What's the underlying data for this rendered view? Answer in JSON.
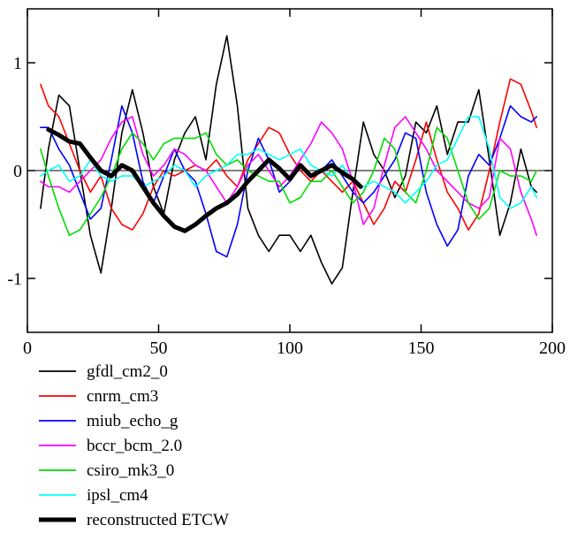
{
  "chart_data": {
    "type": "line",
    "title": "",
    "xlabel": "",
    "ylabel": "",
    "xlim": [
      0,
      200
    ],
    "ylim": [
      -1.5,
      1.5
    ],
    "x_ticks": [
      0,
      50,
      100,
      150,
      200
    ],
    "y_ticks": [
      1,
      0,
      -1
    ],
    "x_tick_labels": [
      "0",
      "50",
      "100",
      "150",
      "200"
    ],
    "y_tick_labels": [
      "1",
      "0",
      "-1"
    ],
    "grid": false,
    "legend_position": "bottom",
    "series": [
      {
        "name": "gfdl_cm2_0",
        "color": "#000000",
        "x": [
          5,
          8,
          12,
          16,
          20,
          24,
          28,
          32,
          36,
          40,
          44,
          48,
          52,
          56,
          60,
          64,
          68,
          72,
          76,
          80,
          84,
          88,
          92,
          96,
          100,
          104,
          108,
          112,
          116,
          120,
          124,
          128,
          132,
          136,
          140,
          144,
          148,
          152,
          156,
          160,
          164,
          168,
          172,
          176,
          180,
          184,
          188,
          192,
          194
        ],
        "y": [
          -0.35,
          0.2,
          0.7,
          0.6,
          0.0,
          -0.6,
          -0.95,
          -0.35,
          0.35,
          0.75,
          0.35,
          -0.15,
          -0.4,
          0.1,
          0.35,
          0.5,
          0.1,
          0.8,
          1.25,
          0.6,
          -0.35,
          -0.6,
          -0.75,
          -0.6,
          -0.6,
          -0.75,
          -0.6,
          -0.85,
          -1.05,
          -0.9,
          -0.2,
          0.45,
          0.15,
          0.0,
          -0.25,
          -0.05,
          0.45,
          0.35,
          0.6,
          0.15,
          0.45,
          0.45,
          0.75,
          0.1,
          -0.6,
          -0.3,
          0.2,
          -0.15,
          -0.2
        ]
      },
      {
        "name": "cnrm_cm3",
        "color": "#ff0000",
        "x": [
          5,
          8,
          12,
          16,
          20,
          24,
          28,
          32,
          36,
          40,
          44,
          48,
          52,
          56,
          60,
          64,
          68,
          72,
          76,
          80,
          84,
          88,
          92,
          96,
          100,
          104,
          108,
          112,
          116,
          120,
          124,
          128,
          132,
          136,
          140,
          144,
          148,
          152,
          156,
          160,
          164,
          168,
          172,
          176,
          180,
          184,
          188,
          192,
          194
        ],
        "y": [
          0.8,
          0.6,
          0.5,
          0.25,
          0.0,
          -0.2,
          -0.05,
          -0.35,
          -0.5,
          -0.55,
          -0.4,
          -0.15,
          0.0,
          -0.05,
          0.0,
          0.05,
          0.0,
          0.1,
          -0.05,
          -0.15,
          0.1,
          0.25,
          0.4,
          0.35,
          0.15,
          0.0,
          -0.1,
          0.0,
          -0.1,
          -0.2,
          -0.1,
          -0.3,
          -0.5,
          -0.35,
          -0.1,
          -0.2,
          0.1,
          0.45,
          0.1,
          -0.2,
          -0.35,
          -0.55,
          -0.4,
          0.0,
          0.45,
          0.85,
          0.8,
          0.55,
          0.4
        ]
      },
      {
        "name": "miub_echo_g",
        "color": "#0000ff",
        "x": [
          5,
          8,
          12,
          16,
          20,
          24,
          28,
          32,
          36,
          40,
          44,
          48,
          52,
          56,
          60,
          64,
          68,
          72,
          76,
          80,
          84,
          88,
          92,
          96,
          100,
          104,
          108,
          112,
          116,
          120,
          124,
          128,
          132,
          136,
          140,
          144,
          148,
          152,
          156,
          160,
          164,
          168,
          172,
          176,
          180,
          184,
          188,
          192,
          194
        ],
        "y": [
          0.4,
          0.4,
          0.2,
          0.05,
          -0.2,
          -0.45,
          -0.35,
          0.1,
          0.6,
          0.35,
          -0.1,
          -0.3,
          -0.05,
          0.2,
          0.0,
          -0.1,
          -0.4,
          -0.75,
          -0.8,
          -0.5,
          0.0,
          0.3,
          0.1,
          -0.2,
          -0.1,
          0.05,
          -0.05,
          0.0,
          0.1,
          -0.05,
          -0.2,
          -0.3,
          -0.2,
          -0.05,
          0.1,
          0.35,
          0.3,
          -0.2,
          -0.5,
          -0.7,
          -0.55,
          -0.05,
          0.15,
          0.05,
          0.3,
          0.6,
          0.5,
          0.45,
          0.5
        ]
      },
      {
        "name": "bccr_bcm_2.0",
        "color": "#ff00ff",
        "x": [
          5,
          8,
          12,
          16,
          20,
          24,
          28,
          32,
          36,
          40,
          44,
          48,
          52,
          56,
          60,
          64,
          68,
          72,
          76,
          80,
          84,
          88,
          92,
          96,
          100,
          104,
          108,
          112,
          116,
          120,
          124,
          128,
          132,
          136,
          140,
          144,
          148,
          152,
          156,
          160,
          164,
          168,
          172,
          176,
          180,
          184,
          188,
          192,
          194
        ],
        "y": [
          -0.1,
          -0.15,
          -0.15,
          -0.2,
          -0.1,
          0.0,
          0.1,
          0.3,
          0.45,
          0.5,
          0.15,
          -0.05,
          0.05,
          0.2,
          0.15,
          0.05,
          0.0,
          -0.15,
          -0.3,
          -0.15,
          0.05,
          0.15,
          0.0,
          -0.15,
          -0.05,
          0.1,
          0.25,
          0.45,
          0.35,
          0.2,
          -0.1,
          -0.5,
          -0.35,
          0.05,
          0.4,
          0.5,
          0.35,
          0.2,
          0.0,
          -0.1,
          -0.2,
          -0.3,
          -0.35,
          -0.25,
          0.3,
          0.2,
          -0.2,
          -0.45,
          -0.6
        ]
      },
      {
        "name": "csiro_mk3_0",
        "color": "#00dd00",
        "x": [
          5,
          8,
          12,
          16,
          20,
          24,
          28,
          32,
          36,
          40,
          44,
          48,
          52,
          56,
          60,
          64,
          68,
          72,
          76,
          80,
          84,
          88,
          92,
          96,
          100,
          104,
          108,
          112,
          116,
          120,
          124,
          128,
          132,
          136,
          140,
          144,
          148,
          152,
          156,
          160,
          164,
          168,
          172,
          176,
          180,
          184,
          188,
          192,
          194
        ],
        "y": [
          0.2,
          -0.05,
          -0.35,
          -0.6,
          -0.55,
          -0.4,
          -0.25,
          -0.05,
          0.2,
          0.35,
          0.25,
          0.1,
          0.25,
          0.3,
          0.3,
          0.3,
          0.35,
          0.15,
          0.05,
          0.1,
          0.0,
          -0.05,
          -0.1,
          -0.1,
          -0.3,
          -0.25,
          -0.1,
          -0.1,
          0.0,
          -0.15,
          -0.3,
          -0.2,
          0.0,
          0.3,
          0.2,
          -0.2,
          -0.3,
          0.0,
          0.4,
          0.3,
          0.0,
          -0.3,
          -0.45,
          -0.35,
          0.0,
          -0.05,
          -0.05,
          -0.1,
          0.0
        ]
      },
      {
        "name": "ipsl_cm4",
        "color": "#00ffff",
        "x": [
          5,
          8,
          12,
          16,
          20,
          24,
          28,
          32,
          36,
          40,
          44,
          48,
          52,
          56,
          60,
          64,
          68,
          72,
          76,
          80,
          84,
          88,
          92,
          96,
          100,
          104,
          108,
          112,
          116,
          120,
          124,
          128,
          132,
          136,
          140,
          144,
          148,
          152,
          156,
          160,
          164,
          168,
          172,
          176,
          180,
          184,
          188,
          192,
          194
        ],
        "y": [
          -0.05,
          0.0,
          0.05,
          -0.1,
          -0.05,
          0.1,
          -0.05,
          -0.1,
          -0.05,
          -0.05,
          -0.15,
          -0.1,
          -0.05,
          0.05,
          0.0,
          -0.15,
          -0.05,
          0.0,
          0.05,
          0.15,
          0.15,
          0.2,
          0.15,
          0.1,
          0.15,
          0.2,
          0.05,
          0.0,
          -0.05,
          0.05,
          -0.1,
          -0.15,
          -0.1,
          -0.15,
          -0.2,
          -0.3,
          -0.2,
          -0.1,
          0.05,
          0.1,
          0.3,
          0.5,
          0.5,
          0.2,
          -0.25,
          -0.35,
          -0.3,
          -0.15,
          -0.25
        ]
      },
      {
        "name": "reconstructed ETCW",
        "color": "#000000",
        "width": "thick",
        "x": [
          8,
          12,
          16,
          20,
          24,
          28,
          32,
          36,
          40,
          44,
          48,
          52,
          56,
          60,
          64,
          68,
          72,
          76,
          80,
          84,
          88,
          92,
          96,
          100,
          104,
          108,
          112,
          116,
          120,
          124,
          127
        ],
        "y": [
          0.38,
          0.33,
          0.27,
          0.25,
          0.12,
          0.0,
          -0.05,
          0.05,
          0.0,
          -0.15,
          -0.3,
          -0.42,
          -0.52,
          -0.56,
          -0.5,
          -0.42,
          -0.35,
          -0.3,
          -0.22,
          -0.1,
          0.0,
          0.1,
          0.02,
          -0.08,
          0.05,
          -0.05,
          0.0,
          0.05,
          -0.02,
          -0.08,
          -0.15
        ]
      }
    ]
  }
}
